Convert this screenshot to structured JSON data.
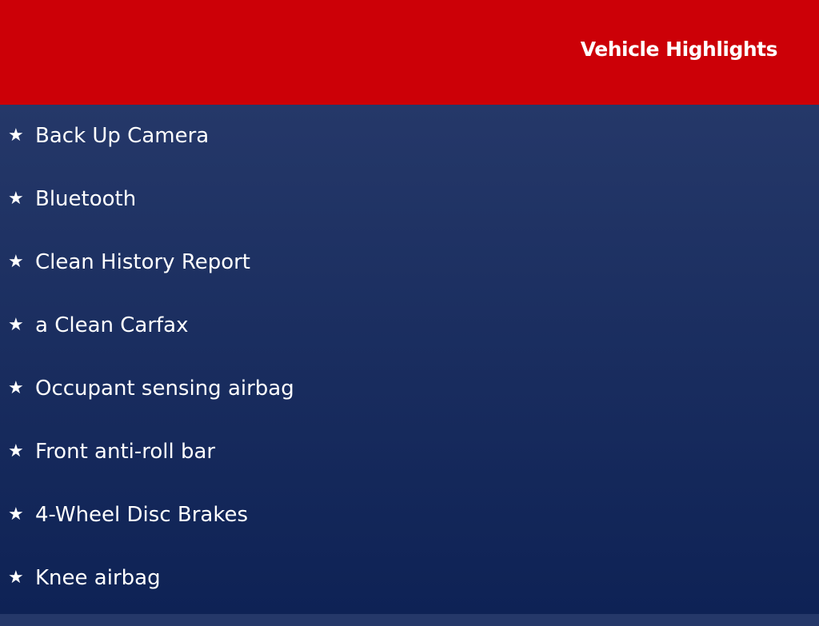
{
  "header": {
    "title": "Vehicle Highlights",
    "color": "#cc0007"
  },
  "bullet_icon": "star-icon",
  "highlights": [
    "Back Up Camera",
    "Bluetooth",
    "Clean History Report",
    "a Clean Carfax",
    "Occupant sensing airbag",
    "Front anti-roll bar",
    "4-Wheel Disc Brakes",
    "Knee airbag"
  ]
}
